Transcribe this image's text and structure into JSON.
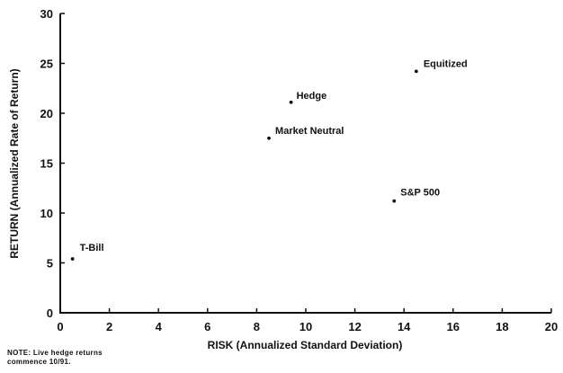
{
  "chart_data": {
    "type": "scatter",
    "title": "",
    "xlabel": "RISK (Annualized Standard Deviation)",
    "ylabel": "RETURN (Annualized Rate of Return)",
    "xlim": [
      0,
      20
    ],
    "ylim": [
      0,
      30
    ],
    "xticks": [
      0,
      2,
      4,
      6,
      8,
      10,
      12,
      14,
      16,
      18,
      20
    ],
    "yticks": [
      0,
      5,
      10,
      15,
      20,
      25,
      30
    ],
    "grid": false,
    "points": [
      {
        "label": "T-Bill",
        "x": 0.5,
        "y": 5.4
      },
      {
        "label": "Hedge",
        "x": 9.4,
        "y": 21.1
      },
      {
        "label": "Market Neutral",
        "x": 8.5,
        "y": 17.5
      },
      {
        "label": "Equitized",
        "x": 14.5,
        "y": 24.2
      },
      {
        "label": "S&P 500",
        "x": 13.6,
        "y": 11.2
      }
    ],
    "note_lines": [
      "NOTE: Live hedge returns",
      "commence 10/91."
    ],
    "colors": {
      "ink": "#111111",
      "background": "#ffffff"
    }
  }
}
